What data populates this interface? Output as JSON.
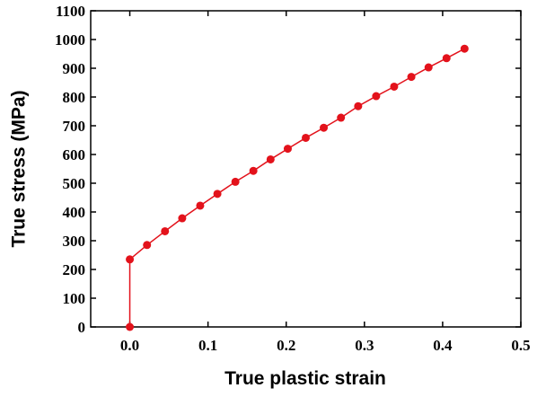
{
  "chart_data": {
    "type": "line",
    "x_label": "True plastic strain",
    "y_label": "True stress (MPa)",
    "x": [
      0,
      0,
      0.022,
      0.045,
      0.067,
      0.09,
      0.112,
      0.135,
      0.158,
      0.18,
      0.202,
      0.225,
      0.248,
      0.27,
      0.292,
      0.315,
      0.338,
      0.36,
      0.382,
      0.405,
      0.428
    ],
    "series": [
      {
        "color": "#e3121b",
        "values": [
          0,
          235,
          285,
          333,
          378,
          422,
          463,
          505,
          543,
          583,
          620,
          658,
          693,
          728,
          768,
          803,
          836,
          870,
          903,
          935,
          968
        ]
      }
    ],
    "markers": true,
    "xlim": [
      -0.05,
      0.5
    ],
    "xticks": [
      {
        "value": 0,
        "label": "0.0"
      },
      0.1,
      0.2,
      0.3,
      0.4,
      0.5
    ],
    "ylim": [
      0,
      1100
    ],
    "yticks": [
      0,
      100,
      200,
      300,
      400,
      500,
      600,
      700,
      800,
      900,
      1000,
      1100
    ]
  }
}
